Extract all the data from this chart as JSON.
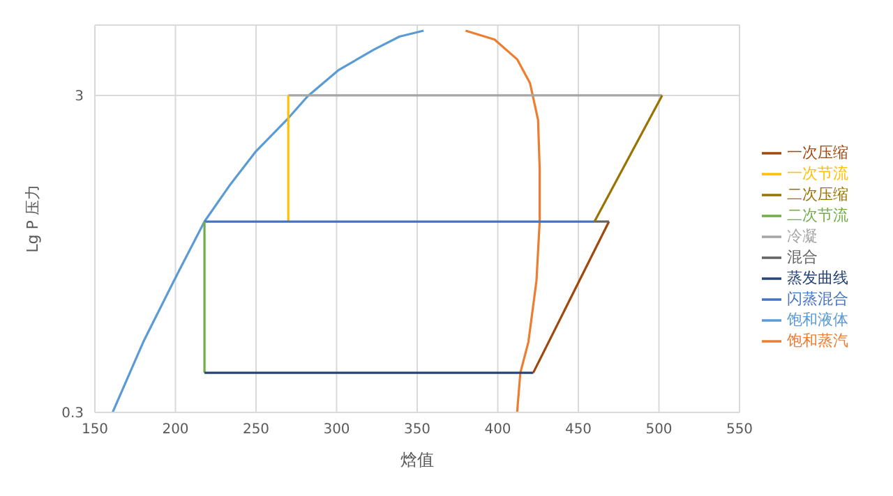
{
  "chart_data": {
    "type": "line",
    "xlabel": "焓值",
    "ylabel": "Lg P 压力",
    "log": "y",
    "xlim": [
      150,
      550
    ],
    "xticks": [
      150,
      200,
      250,
      300,
      350,
      400,
      450,
      500,
      550
    ],
    "ylim": [
      0.3,
      5
    ],
    "yticks": [
      0.3,
      3
    ],
    "grid": true,
    "legend": "right",
    "marker": "none",
    "series": [
      {
        "name": "饱和液体",
        "color": "#5b9bd5",
        "x": [
          161,
          180,
          199,
          218,
          234,
          250,
          269,
          282,
          301,
          323,
          339,
          354
        ],
        "values": [
          0.3,
          0.5,
          0.78,
          1.2,
          1.57,
          2.0,
          2.51,
          2.98,
          3.6,
          4.18,
          4.6,
          4.8
        ]
      },
      {
        "name": "饱和蒸汽",
        "color": "#ed7d31",
        "x": [
          380,
          398,
          412,
          420,
          425,
          426,
          426,
          424,
          419,
          414,
          412
        ],
        "values": [
          4.8,
          4.5,
          3.9,
          3.28,
          2.51,
          1.76,
          1.2,
          0.78,
          0.5,
          0.4,
          0.3
        ]
      },
      {
        "name": "冷凝",
        "color": "#a5a5a5",
        "x": [
          502,
          270
        ],
        "values": [
          3,
          3
        ]
      },
      {
        "name": "一次节流",
        "color": "#ffc000",
        "x": [
          270,
          270
        ],
        "values": [
          3,
          1.2
        ]
      },
      {
        "name": "闪蒸混合",
        "color": "#4472c4",
        "x": [
          218,
          460
        ],
        "values": [
          1.2,
          1.2
        ]
      },
      {
        "name": "二次节流",
        "color": "#70ad47",
        "x": [
          218,
          218
        ],
        "values": [
          1.2,
          0.4
        ]
      },
      {
        "name": "蒸发曲线",
        "color": "#264478",
        "x": [
          218,
          422
        ],
        "values": [
          0.4,
          0.4
        ]
      },
      {
        "name": "一次压缩",
        "color": "#9e480e",
        "x": [
          422,
          469
        ],
        "values": [
          0.4,
          1.2
        ]
      },
      {
        "name": "混合",
        "color": "#636363",
        "x": [
          469,
          460
        ],
        "values": [
          1.2,
          1.2
        ]
      },
      {
        "name": "二次压缩",
        "color": "#997300",
        "x": [
          460,
          502
        ],
        "values": [
          1.2,
          3
        ]
      }
    ]
  }
}
